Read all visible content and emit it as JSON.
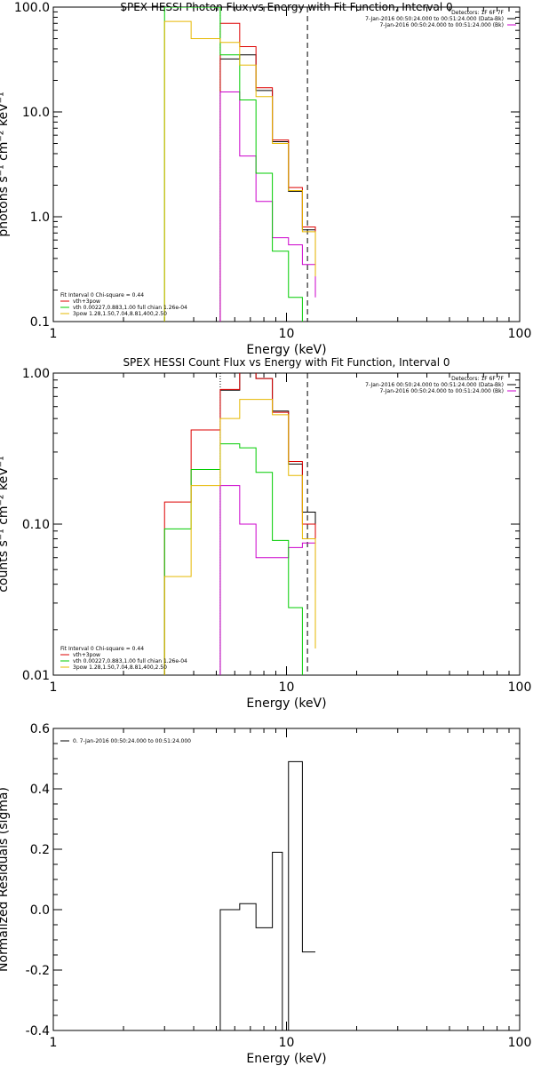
{
  "chart_data": [
    {
      "type": "line",
      "title": "SPEX HESSI Photon Flux vs Energy with Fit Function, Interval 0",
      "xlabel": "Energy (keV)",
      "ylabel": "photons s⁻¹ cm⁻² keV⁻¹",
      "xscale": "log",
      "yscale": "log",
      "xlim": [
        1,
        100
      ],
      "ylim": [
        0.1,
        100
      ],
      "xticks": [
        "1",
        "10",
        "100"
      ],
      "yticks": [
        {
          "v": 0.1,
          "label": "0.1"
        },
        {
          "v": 1,
          "label": "1.0"
        },
        {
          "v": 10,
          "label": "10.0"
        },
        {
          "v": 100,
          "label": "100.0"
        }
      ],
      "vlines": [
        {
          "x": 5.2,
          "color": "#00cc00",
          "dash": "solid"
        },
        {
          "x": 5.2,
          "color": "#000000",
          "dash": "dotted"
        },
        {
          "x": 12.3,
          "color": "#000000",
          "dash": "dashed"
        }
      ],
      "legend_header": "Fit Interval 0   Chi-square = 0.44",
      "legend_entries": [
        {
          "label": "vth+3pow",
          "color": "#dd0000"
        },
        {
          "label": "vth 0.00227,0.883,1.00  full chian 1.26e-04",
          "color": "#00cc00"
        },
        {
          "label": "3pow 1.28,1.50,7.04,8.81,400,2.50",
          "color": "#e6b800"
        }
      ],
      "info_lines": [
        "Detectors: 1F 6F 7F",
        "7-Jan-2016 00:50:24.000 to 00:51:24.000 (Data-Bk)",
        "7-Jan-2016 00:50:24.000 to 00:51:24.000 (Bk)"
      ],
      "info_colors": [
        "#000000",
        "#000000",
        "#cc00cc"
      ],
      "series": [
        {
          "color": "#000000",
          "edges": [
            5.2,
            6.3,
            7.4,
            8.7,
            10.2,
            11.7,
            13.3
          ],
          "values": [
            32,
            35,
            16,
            5.2,
            1.75,
            0.75,
            0.28
          ]
        },
        {
          "color": "#dd0000",
          "edges": [
            5.2,
            6.3,
            7.4,
            8.7,
            10.2,
            11.7,
            13.3
          ],
          "values": [
            70,
            42,
            17,
            5.4,
            1.9,
            0.8,
            0.3
          ]
        },
        {
          "color": "#cc00cc",
          "edges": [
            5.2,
            6.3,
            7.4,
            8.7,
            10.2,
            11.7,
            13.3
          ],
          "values": [
            15.5,
            3.8,
            1.4,
            0.63,
            0.54,
            0.35,
            0.17
          ]
        },
        {
          "color": "#00cc00",
          "edges": [
            3.0,
            5.2,
            6.3,
            7.4,
            8.7,
            10.2,
            11.7
          ],
          "values": [
            100,
            35,
            13,
            2.6,
            0.47,
            0.17
          ]
        },
        {
          "color": "#e6b800",
          "edges": [
            3.0,
            3.9,
            5.2,
            6.3,
            7.4,
            8.7,
            10.2,
            11.7,
            13.3
          ],
          "values": [
            73,
            50,
            46,
            28,
            14,
            5.0,
            1.78,
            0.72,
            0.27
          ]
        }
      ]
    },
    {
      "type": "line",
      "title": "SPEX HESSI Count Flux vs Energy with Fit Function, Interval 0",
      "xlabel": "Energy (keV)",
      "ylabel": "counts s⁻¹ cm⁻² keV⁻¹",
      "xscale": "log",
      "yscale": "log",
      "xlim": [
        1,
        100
      ],
      "ylim": [
        0.01,
        1.0
      ],
      "xticks": [
        "1",
        "10",
        "100"
      ],
      "yticks": [
        {
          "v": 0.01,
          "label": "0.01"
        },
        {
          "v": 0.1,
          "label": "0.10"
        },
        {
          "v": 1.0,
          "label": "1.00"
        }
      ],
      "vlines": [
        {
          "x": 5.2,
          "color": "#000000",
          "dash": "dotted"
        },
        {
          "x": 12.3,
          "color": "#000000",
          "dash": "dashed"
        }
      ],
      "legend_header": "Fit Interval 0   Chi-square = 0.44",
      "legend_entries": [
        {
          "label": "vth+3pow",
          "color": "#dd0000"
        },
        {
          "label": "vth 0.00227,0.883,1.00  full chian 1.26e-04",
          "color": "#00cc00"
        },
        {
          "label": "3pow 1.28,1.50,7.04,8.81,400,2.50",
          "color": "#e6b800"
        }
      ],
      "info_lines": [
        "Detectors: 1F 6F 7F",
        "7-Jan-2016 00:50:24.000 to 00:51:24.000 (Data-Bk)",
        "7-Jan-2016 00:50:24.000 to 00:51:24.000 (Bk)"
      ],
      "info_colors": [
        "#000000",
        "#000000",
        "#cc00cc"
      ],
      "series": [
        {
          "color": "#000000",
          "edges": [
            5.2,
            6.3,
            7.4,
            8.7,
            10.2,
            11.7,
            13.3
          ],
          "values": [
            0.77,
            1.0,
            0.92,
            0.56,
            0.25,
            0.12,
            0.04
          ]
        },
        {
          "color": "#dd0000",
          "edges": [
            3.0,
            3.9,
            5.2,
            6.3,
            7.4,
            8.7,
            10.2,
            11.7,
            13.3
          ],
          "values": [
            0.14,
            0.42,
            0.78,
            1.05,
            0.92,
            0.55,
            0.26,
            0.1,
            0.035
          ]
        },
        {
          "color": "#cc00cc",
          "edges": [
            5.2,
            6.3,
            7.4,
            8.7,
            10.2,
            11.7,
            13.3
          ],
          "values": [
            0.18,
            0.1,
            0.06,
            0.06,
            0.07,
            0.075,
            0.052
          ]
        },
        {
          "color": "#00cc00",
          "edges": [
            3.0,
            3.9,
            5.2,
            6.3,
            7.4,
            8.7,
            10.2,
            11.7
          ],
          "values": [
            0.093,
            0.23,
            0.34,
            0.32,
            0.22,
            0.078,
            0.028
          ]
        },
        {
          "color": "#e6b800",
          "edges": [
            3.0,
            3.9,
            5.2,
            6.3,
            7.4,
            8.7,
            10.2,
            11.7,
            13.3
          ],
          "values": [
            0.045,
            0.18,
            0.5,
            0.67,
            0.67,
            0.53,
            0.21,
            0.08,
            0.015
          ]
        }
      ]
    },
    {
      "type": "line",
      "xlabel": "Energy (keV)",
      "ylabel": "Normalized Residuals (sigma)",
      "xscale": "log",
      "yscale": "linear",
      "xlim": [
        1,
        100
      ],
      "ylim": [
        -0.4,
        0.6
      ],
      "xticks": [
        "1",
        "10",
        "100"
      ],
      "yticks": [
        {
          "v": -0.4,
          "label": "-0.4"
        },
        {
          "v": -0.2,
          "label": "-0.2"
        },
        {
          "v": 0.0,
          "label": "0.0"
        },
        {
          "v": 0.2,
          "label": "0.2"
        },
        {
          "v": 0.4,
          "label": "0.4"
        },
        {
          "v": 0.6,
          "label": "0.6"
        }
      ],
      "legend_entries": [
        {
          "label": "0.  7-Jan-2016 00:50:24.000 to 00:51:24.000",
          "color": "#000000"
        }
      ],
      "series": [
        {
          "color": "#000000",
          "edges": [
            5.2,
            6.3,
            7.4,
            8.7,
            9.6,
            10.2,
            11.7,
            13.3
          ],
          "values": [
            0.0,
            0.02,
            -0.06,
            0.19,
            -0.4,
            0.49,
            -0.14
          ]
        }
      ]
    }
  ]
}
